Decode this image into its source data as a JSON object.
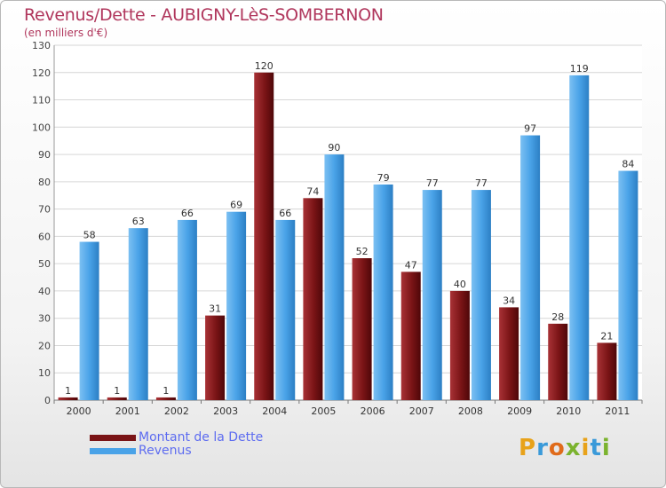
{
  "title": "Revenus/Dette - AUBIGNY-LèS-SOMBERNON",
  "subtitle": "(en milliers d'€)",
  "logo": "Proxiti",
  "colors": {
    "debt": "#7a1416",
    "revenue": "#4aa3e8",
    "title": "#b0365c",
    "legend_text": "#5d6cf0"
  },
  "chart_data": {
    "type": "bar",
    "categories": [
      "2000",
      "2001",
      "2002",
      "2003",
      "2004",
      "2005",
      "2006",
      "2007",
      "2008",
      "2009",
      "2010",
      "2011"
    ],
    "series": [
      {
        "name": "Montant de la Dette",
        "values": [
          1,
          1,
          1,
          31,
          120,
          74,
          52,
          47,
          40,
          34,
          28,
          21
        ]
      },
      {
        "name": "Revenus",
        "values": [
          58,
          63,
          66,
          69,
          66,
          90,
          79,
          77,
          77,
          97,
          119,
          84
        ]
      }
    ],
    "ylim": [
      0,
      130
    ],
    "yticks": [
      0,
      10,
      20,
      30,
      40,
      50,
      60,
      70,
      80,
      90,
      100,
      110,
      120,
      130
    ],
    "grid": true,
    "legend_position": "bottom-left"
  }
}
